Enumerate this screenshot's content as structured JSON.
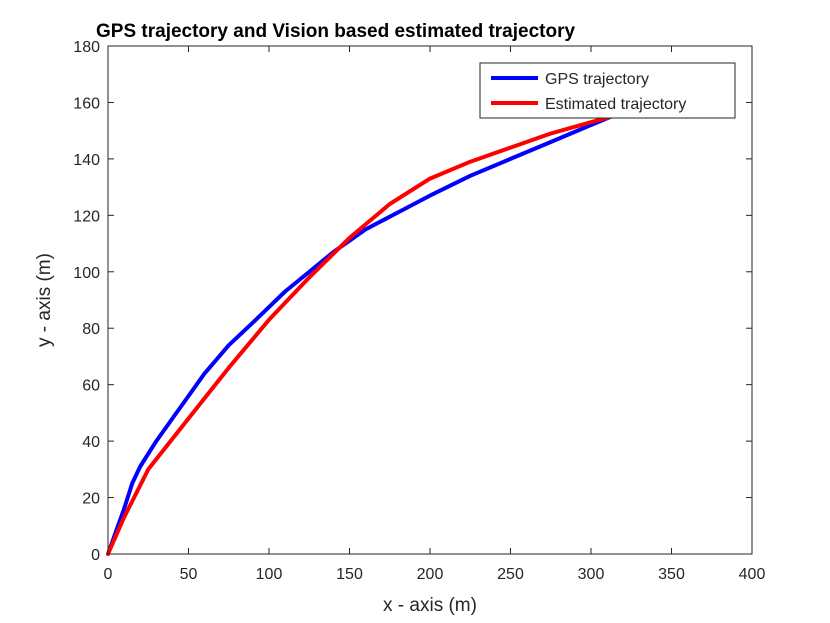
{
  "chart_data": {
    "type": "line",
    "title": "GPS trajectory and Vision based estimated trajectory",
    "xlabel": "x - axis (m)",
    "ylabel": "y - axis (m)",
    "xlim": [
      0,
      400
    ],
    "ylim": [
      0,
      180
    ],
    "xticks": [
      "0",
      "50",
      "100",
      "150",
      "200",
      "250",
      "300",
      "350",
      "400"
    ],
    "yticks": [
      "0",
      "20",
      "40",
      "60",
      "80",
      "100",
      "120",
      "140",
      "160",
      "180"
    ],
    "grid": false,
    "legend_position": "top-right",
    "series": [
      {
        "name": "GPS trajectory",
        "color": "#0000ff",
        "x": [
          0,
          5,
          10,
          15,
          20,
          30,
          40,
          50,
          60,
          75,
          90,
          110,
          125,
          140,
          150,
          160,
          180,
          200,
          225,
          250,
          275,
          300,
          325,
          335
        ],
        "y": [
          0,
          8,
          16,
          25,
          31,
          40,
          48,
          56,
          64,
          74,
          82,
          93,
          100,
          107,
          111,
          115,
          121,
          127,
          134,
          140,
          146,
          152,
          158,
          162
        ]
      },
      {
        "name": "Estimated trajectory",
        "color": "#ff0000",
        "x": [
          0,
          10,
          25,
          50,
          75,
          100,
          125,
          150,
          175,
          200,
          225,
          250,
          275,
          300,
          325,
          350,
          370,
          388
        ],
        "y": [
          0,
          13,
          30,
          48,
          66,
          83,
          98,
          112,
          124,
          133,
          139,
          144,
          149,
          153,
          157,
          161,
          163,
          165
        ]
      }
    ]
  }
}
